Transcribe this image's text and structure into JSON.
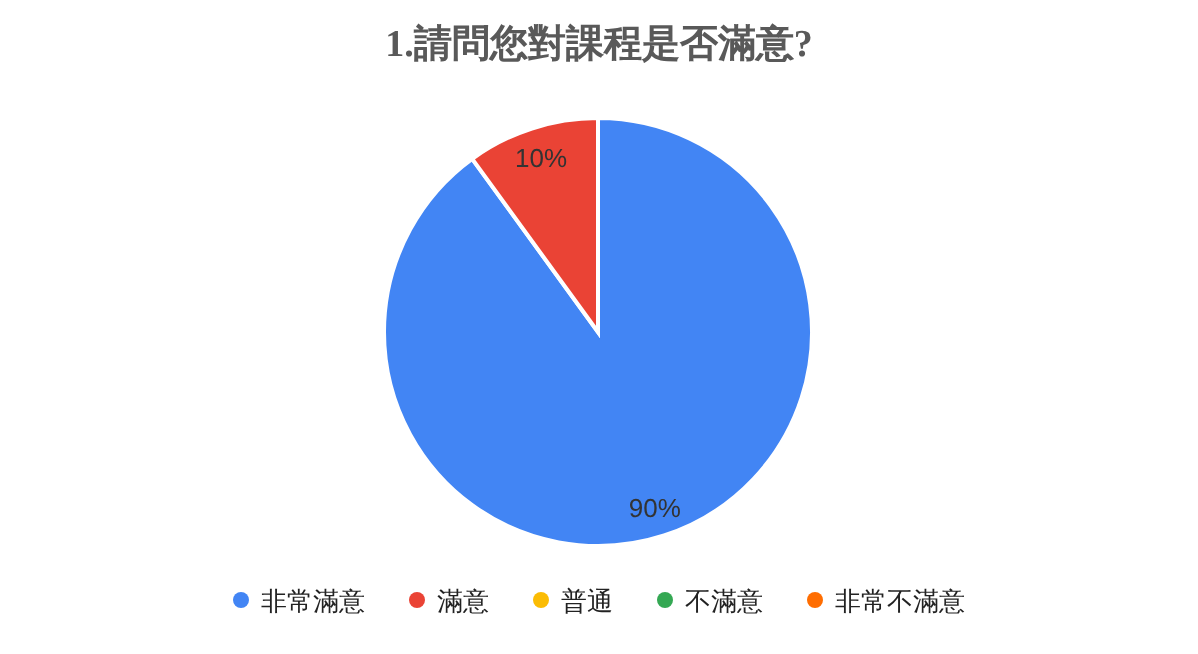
{
  "chart_data": {
    "type": "pie",
    "title": "1.請問您對課程是否滿意?",
    "categories": [
      "非常滿意",
      "滿意",
      "普通",
      "不滿意",
      "非常不滿意"
    ],
    "values": [
      90,
      10,
      0,
      0,
      0
    ],
    "colors": [
      "#4285f4",
      "#ea4335",
      "#fbbc04",
      "#34a853",
      "#ff6d01"
    ],
    "value_labels": [
      "90%",
      "10%",
      null,
      null,
      null
    ],
    "legend": "bottom"
  }
}
